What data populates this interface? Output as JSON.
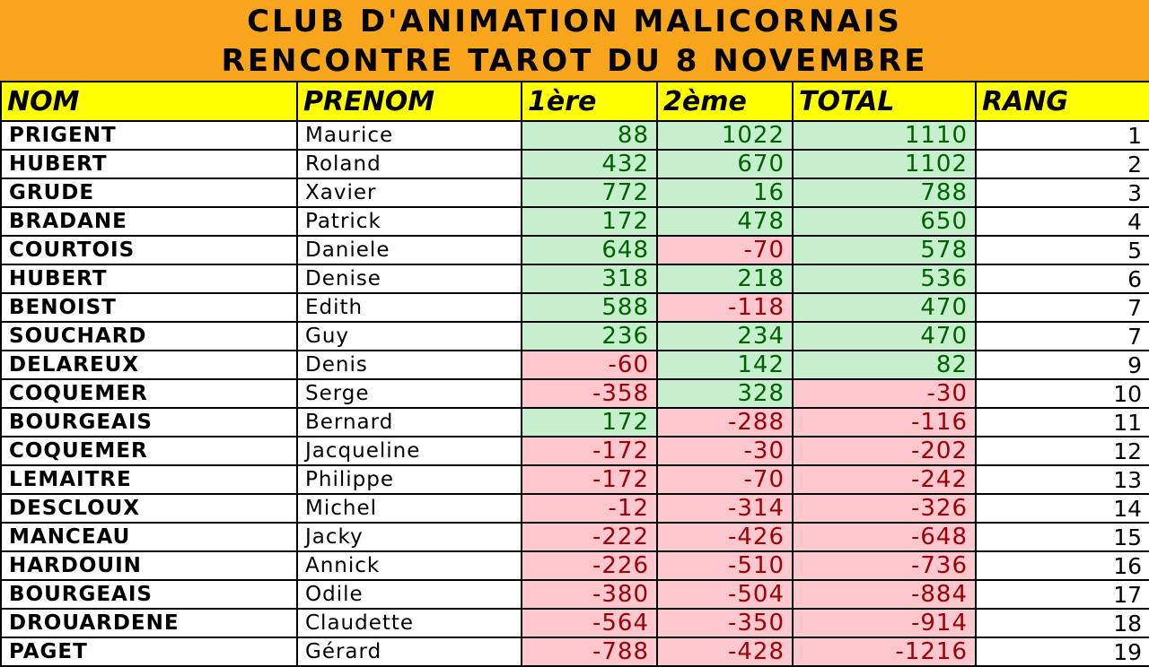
{
  "header": {
    "title_line1": "CLUB D'ANIMATION MALICORNAIS",
    "title_line2": "RENCONTRE TAROT DU 8 NOVEMBRE"
  },
  "table": {
    "columns": [
      "NOM",
      "PRENOM",
      "1ère",
      "2ème",
      "TOTAL",
      "RANG"
    ],
    "rows": [
      {
        "nom": "PRIGENT",
        "prenom": "Maurice",
        "p1": "88",
        "p2": "1022",
        "total": "1110",
        "rang": "1"
      },
      {
        "nom": "HUBERT",
        "prenom": "Roland",
        "p1": "432",
        "p2": "670",
        "total": "1102",
        "rang": "2"
      },
      {
        "nom": "GRUDE",
        "prenom": "Xavier",
        "p1": "772",
        "p2": "16",
        "total": "788",
        "rang": "3"
      },
      {
        "nom": "BRADANE",
        "prenom": "Patrick",
        "p1": "172",
        "p2": "478",
        "total": "650",
        "rang": "4"
      },
      {
        "nom": "COURTOIS",
        "prenom": "Daniele",
        "p1": "648",
        "p2": "-70",
        "total": "578",
        "rang": "5"
      },
      {
        "nom": "HUBERT",
        "prenom": "Denise",
        "p1": "318",
        "p2": "218",
        "total": "536",
        "rang": "6"
      },
      {
        "nom": "BENOIST",
        "prenom": "Edith",
        "p1": "588",
        "p2": "-118",
        "total": "470",
        "rang": "7"
      },
      {
        "nom": "SOUCHARD",
        "prenom": "Guy",
        "p1": "236",
        "p2": "234",
        "total": "470",
        "rang": "7"
      },
      {
        "nom": "DELAREUX",
        "prenom": "Denis",
        "p1": "-60",
        "p2": "142",
        "total": "82",
        "rang": "9"
      },
      {
        "nom": "COQUEMER",
        "prenom": "Serge",
        "p1": "-358",
        "p2": "328",
        "total": "-30",
        "rang": "10"
      },
      {
        "nom": "BOURGEAIS",
        "prenom": "Bernard",
        "p1": "172",
        "p2": "-288",
        "total": "-116",
        "rang": "11"
      },
      {
        "nom": "COQUEMER",
        "prenom": "Jacqueline",
        "p1": "-172",
        "p2": "-30",
        "total": "-202",
        "rang": "12"
      },
      {
        "nom": "LEMAITRE",
        "prenom": "Philippe",
        "p1": "-172",
        "p2": "-70",
        "total": "-242",
        "rang": "13"
      },
      {
        "nom": "DESCLOUX",
        "prenom": "Michel",
        "p1": "-12",
        "p2": "-314",
        "total": "-326",
        "rang": "14"
      },
      {
        "nom": "MANCEAU",
        "prenom": "Jacky",
        "p1": "-222",
        "p2": "-426",
        "total": "-648",
        "rang": "15"
      },
      {
        "nom": "HARDOUIN",
        "prenom": "Annick",
        "p1": "-226",
        "p2": "-510",
        "total": "-736",
        "rang": "16"
      },
      {
        "nom": "BOURGEAIS",
        "prenom": "Odile",
        "p1": "-380",
        "p2": "-504",
        "total": "-884",
        "rang": "17"
      },
      {
        "nom": "DROUARDENE",
        "prenom": "Claudette",
        "p1": "-564",
        "p2": "-350",
        "total": "-914",
        "rang": "18"
      },
      {
        "nom": "PAGET",
        "prenom": "Gérard",
        "p1": "-788",
        "p2": "-428",
        "total": "-1216",
        "rang": "19"
      }
    ]
  },
  "colors": {
    "title_band": "#f9a61c",
    "header_row": "#ffff00",
    "positive_fill": "#c6efce",
    "positive_text": "#006100",
    "negative_fill": "#ffc7ce",
    "negative_text": "#9c0006"
  }
}
